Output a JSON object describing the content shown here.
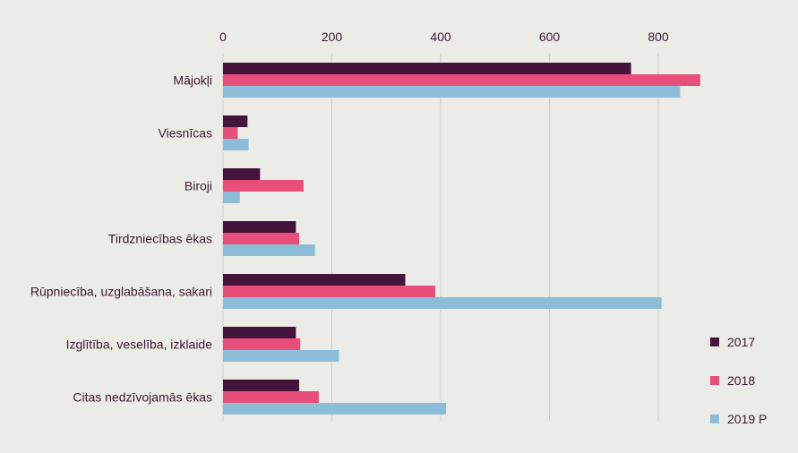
{
  "chart_data": {
    "type": "bar",
    "orientation": "horizontal",
    "categories": [
      "Mājokļi",
      "Viesnīcas",
      "Biroji",
      "Tirdzniecības ēkas",
      "Rūpniecība, uzglabāšana, sakari",
      "Izglītība, veselība, izklaide",
      "Citas nedzīvojamās ēkas"
    ],
    "series": [
      {
        "name": "2017",
        "color": "#45143a",
        "values": [
          750,
          45,
          68,
          134,
          335,
          134,
          140
        ]
      },
      {
        "name": "2018",
        "color": "#e84e7a",
        "values": [
          877,
          27,
          148,
          140,
          390,
          142,
          176
        ]
      },
      {
        "name": "2019 P",
        "color": "#8bbdd9",
        "values": [
          840,
          47,
          31,
          169,
          806,
          213,
          410
        ]
      }
    ],
    "x_ticks": [
      "0",
      "200",
      "400",
      "600",
      "800"
    ],
    "xlim": [
      0,
      880
    ],
    "grid": true,
    "legend_position": "bottom-right",
    "title": "",
    "xlabel": "",
    "ylabel": ""
  }
}
